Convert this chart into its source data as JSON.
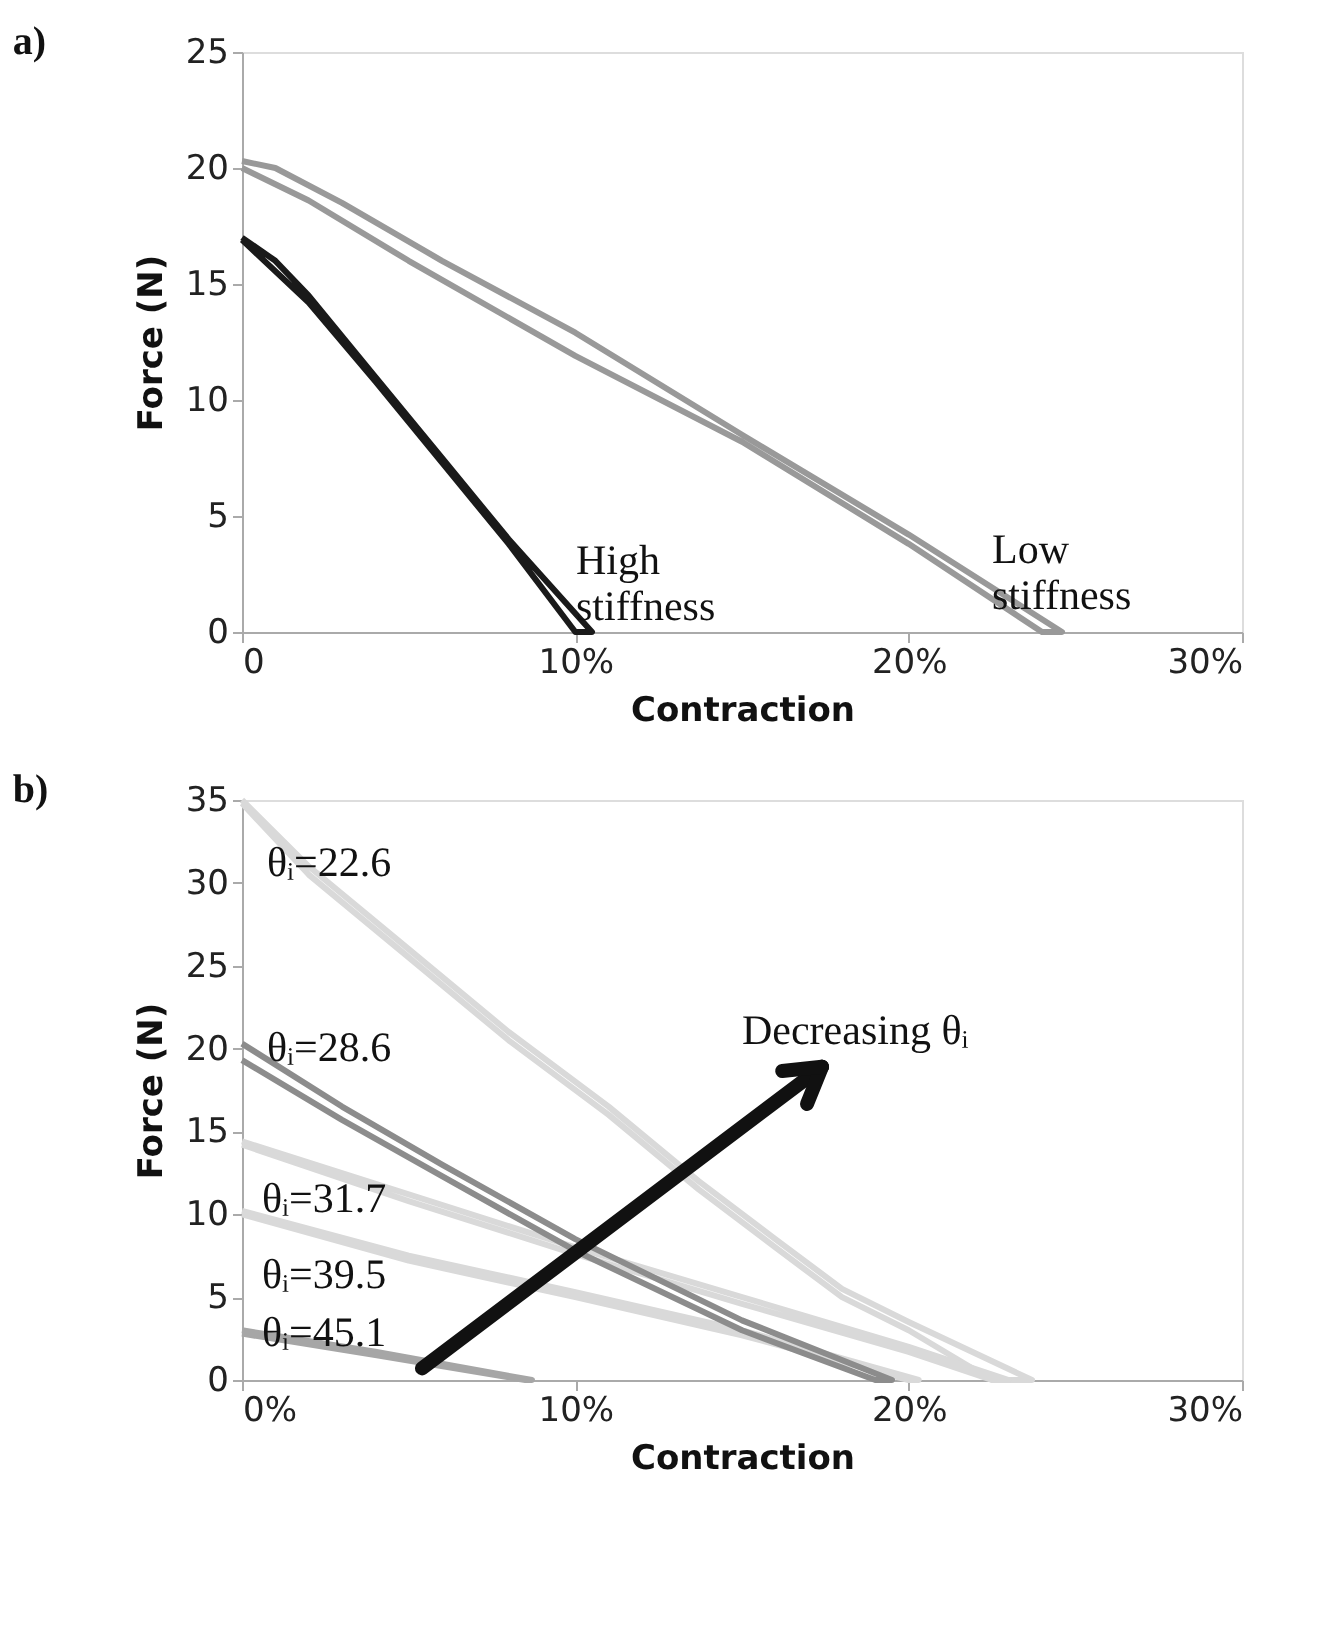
{
  "chart_data": [
    {
      "type": "line",
      "title": "a)",
      "xlabel": "Contraction",
      "ylabel": "Force (N)",
      "xlim": [
        0,
        30
      ],
      "xticks": [
        0,
        {
          "value": 10,
          "label": "10%"
        },
        {
          "value": 20,
          "label": "20%"
        },
        {
          "value": 30,
          "label": "30%"
        }
      ],
      "ylim": [
        0,
        25
      ],
      "yticks": [
        0,
        5,
        10,
        15,
        20,
        25
      ],
      "grid": false,
      "legend": false,
      "marker": "none",
      "line_style": "solid",
      "series": [
        {
          "color": "#999999",
          "x": [
            0,
            1,
            3,
            6,
            10,
            15,
            20,
            24.6,
            24,
            20,
            15,
            10,
            5,
            2,
            0
          ],
          "values": [
            20.3,
            20,
            18.5,
            16,
            12.9,
            8.5,
            4.2,
            0,
            0,
            3.8,
            8.2,
            11.9,
            16,
            18.6,
            20
          ]
        },
        {
          "color": "#1a1a1a",
          "x": [
            0,
            1,
            2,
            4,
            6,
            8,
            10.5,
            10,
            8,
            6,
            4,
            2,
            0
          ],
          "values": [
            17,
            16,
            14.5,
            11,
            7.5,
            4,
            0,
            0,
            3.8,
            7.3,
            10.8,
            14.2,
            16.9
          ]
        }
      ],
      "annotations": [
        "High\nstiffness",
        "Low\nstiffness"
      ]
    },
    {
      "type": "line",
      "title": "b)",
      "xlabel": "Contraction",
      "ylabel": "Force (N)",
      "xlim": [
        0,
        30
      ],
      "xticks": [
        {
          "value": 0,
          "label": "0%"
        },
        {
          "value": 10,
          "label": "10%"
        },
        {
          "value": 20,
          "label": "20%"
        },
        {
          "value": 30,
          "label": "30%"
        }
      ],
      "ylim": [
        0,
        35
      ],
      "yticks": [
        0,
        5,
        10,
        15,
        20,
        25,
        30,
        35
      ],
      "grid": false,
      "legend": false,
      "marker": "none",
      "line_style": "solid",
      "series": [
        {
          "color": "#d9d9d9",
          "x": [
            0,
            2,
            5,
            8,
            11,
            13.7,
            16,
            18,
            20,
            23.7,
            22.5,
            20,
            18,
            16,
            13.7,
            11,
            8,
            5,
            2,
            0
          ],
          "values": [
            35,
            31,
            26,
            21,
            16.5,
            12,
            8.5,
            5.5,
            3.5,
            0,
            0,
            3,
            5,
            8,
            11.5,
            16,
            20.5,
            25.5,
            30.5,
            34.8
          ]
        },
        {
          "color": "#d9d9d9",
          "x": [
            0,
            5,
            10,
            15,
            20,
            23,
            22.5,
            20,
            15,
            10,
            5,
            0
          ],
          "values": [
            14.4,
            11.2,
            8,
            5,
            2,
            0,
            0,
            1.7,
            4.6,
            7.6,
            10.8,
            14.2
          ]
        },
        {
          "color": "#d9d9d9",
          "x": [
            0,
            5,
            10,
            15,
            20.3,
            20,
            15,
            10,
            5,
            0
          ],
          "values": [
            10.2,
            7.5,
            5.3,
            3,
            0,
            0,
            2.7,
            5,
            7.2,
            10
          ]
        },
        {
          "color": "#8c8c8c",
          "x": [
            0,
            3,
            6,
            10,
            15,
            19.5,
            19,
            15,
            10,
            6,
            3,
            0
          ],
          "values": [
            20.3,
            16.5,
            13,
            8.5,
            3.6,
            0,
            0,
            3,
            7.8,
            12.3,
            15.7,
            19.3
          ]
        },
        {
          "color": "#a6a6a6",
          "x": [
            0,
            4,
            8.7,
            8.5,
            4,
            0
          ],
          "values": [
            3,
            1.7,
            0,
            0,
            1.5,
            2.8
          ]
        }
      ],
      "annotations": [
        "θᵢ=22.6",
        "θᵢ=28.6",
        "θᵢ=31.7",
        "θᵢ=39.5",
        "θᵢ=45.1",
        "Decreasing θᵢ"
      ]
    }
  ]
}
